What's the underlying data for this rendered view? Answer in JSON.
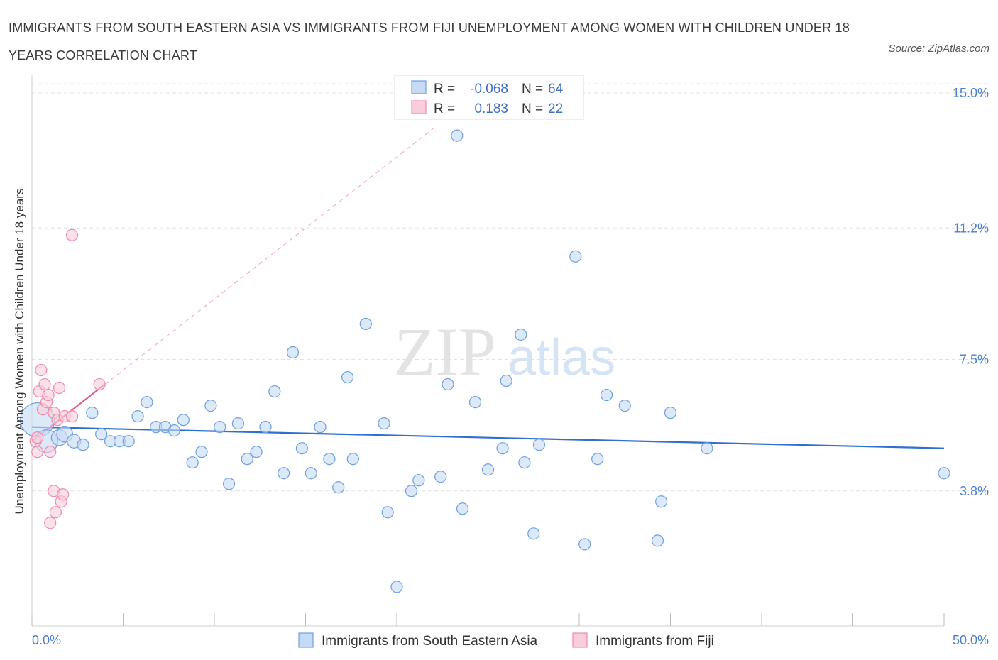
{
  "title": "IMMIGRANTS FROM SOUTH EASTERN ASIA VS IMMIGRANTS FROM FIJI UNEMPLOYMENT AMONG WOMEN WITH CHILDREN UNDER 18 YEARS CORRELATION CHART",
  "source": "Source: ZipAtlas.com",
  "watermark": {
    "zip": "ZIP",
    "atlas": "atlas"
  },
  "legend": {
    "r_label": "R =",
    "n_label": "N =",
    "rows": [
      {
        "r": "-0.068",
        "n": "64"
      },
      {
        "r": "0.183",
        "n": "22"
      }
    ]
  },
  "chart_data": {
    "type": "scatter",
    "ylabel": "Unemployment Among Women with Children Under 18 years",
    "xlim": [
      0,
      50
    ],
    "ylim": [
      0,
      15.5
    ],
    "x_tick_labels": [
      "0.0%",
      "50.0%"
    ],
    "y_ticks": [
      {
        "value": 3.8,
        "label": "3.8%"
      },
      {
        "value": 7.5,
        "label": "7.5%"
      },
      {
        "value": 11.2,
        "label": "11.2%"
      },
      {
        "value": 15.0,
        "label": "15.0%"
      }
    ],
    "grid": "horizontal dashed",
    "series": [
      {
        "name": "Immigrants from South Eastern Asia",
        "color": "#6f9fe0",
        "fill": "#c5daf5",
        "trend": {
          "x": [
            0,
            50
          ],
          "y": [
            5.6,
            5.0
          ],
          "style": "solid"
        },
        "points": [
          [
            0.3,
            5.8
          ],
          [
            0.8,
            5.2
          ],
          [
            1.5,
            5.3
          ],
          [
            1.8,
            5.4
          ],
          [
            2.3,
            5.2
          ],
          [
            2.8,
            5.1
          ],
          [
            3.3,
            6.0
          ],
          [
            3.8,
            5.4
          ],
          [
            4.3,
            5.2
          ],
          [
            4.8,
            5.2
          ],
          [
            5.3,
            5.2
          ],
          [
            5.8,
            5.9
          ],
          [
            6.3,
            6.3
          ],
          [
            6.8,
            5.6
          ],
          [
            7.3,
            5.6
          ],
          [
            7.8,
            5.5
          ],
          [
            8.3,
            5.8
          ],
          [
            8.8,
            4.6
          ],
          [
            9.3,
            4.9
          ],
          [
            9.8,
            6.2
          ],
          [
            10.3,
            5.6
          ],
          [
            10.8,
            4.0
          ],
          [
            11.3,
            5.7
          ],
          [
            11.8,
            4.7
          ],
          [
            12.3,
            4.9
          ],
          [
            12.8,
            5.6
          ],
          [
            13.3,
            6.6
          ],
          [
            13.8,
            4.3
          ],
          [
            14.3,
            7.7
          ],
          [
            14.8,
            5.0
          ],
          [
            15.3,
            4.3
          ],
          [
            15.8,
            5.6
          ],
          [
            16.3,
            4.7
          ],
          [
            16.8,
            3.9
          ],
          [
            17.3,
            7.0
          ],
          [
            17.6,
            4.7
          ],
          [
            18.3,
            8.5
          ],
          [
            19.3,
            5.7
          ],
          [
            19.5,
            3.2
          ],
          [
            20.0,
            1.1
          ],
          [
            20.8,
            3.8
          ],
          [
            21.2,
            4.1
          ],
          [
            22.4,
            4.2
          ],
          [
            22.8,
            6.8
          ],
          [
            23.3,
            13.8
          ],
          [
            23.6,
            3.3
          ],
          [
            24.3,
            6.3
          ],
          [
            25.0,
            4.4
          ],
          [
            25.8,
            5.0
          ],
          [
            26.0,
            6.9
          ],
          [
            26.8,
            8.2
          ],
          [
            27.0,
            4.6
          ],
          [
            27.5,
            2.6
          ],
          [
            27.8,
            5.1
          ],
          [
            29.8,
            10.4
          ],
          [
            30.3,
            2.3
          ],
          [
            31.0,
            4.7
          ],
          [
            31.5,
            6.5
          ],
          [
            32.5,
            6.2
          ],
          [
            34.3,
            2.4
          ],
          [
            34.5,
            3.5
          ],
          [
            35.0,
            6.0
          ],
          [
            37.0,
            5.0
          ],
          [
            50.0,
            4.3
          ]
        ],
        "sizes": [
          30,
          20,
          14,
          14,
          12,
          10,
          10,
          10,
          10,
          10,
          10,
          10,
          10,
          10,
          10,
          10,
          10,
          10,
          10,
          10,
          10,
          10,
          10,
          10,
          10,
          10,
          10,
          10,
          10,
          10,
          10,
          10,
          10,
          10,
          10,
          10,
          10,
          10,
          10,
          10,
          10,
          10,
          10,
          10,
          10,
          10,
          10,
          10,
          10,
          10,
          10,
          10,
          10,
          10,
          10,
          10,
          10,
          10,
          10,
          10,
          10,
          10,
          10,
          10
        ]
      },
      {
        "name": "Immigrants from Fiji",
        "color": "#f08aaa",
        "fill": "#f9cddb",
        "trend": {
          "x": [
            0,
            4.0
          ],
          "y": [
            5.2,
            6.8
          ],
          "style": "solid",
          "extended_to": [
            22,
            14.0
          ]
        },
        "points": [
          [
            0.2,
            5.2
          ],
          [
            0.3,
            4.9
          ],
          [
            0.4,
            6.6
          ],
          [
            0.5,
            7.2
          ],
          [
            0.6,
            6.1
          ],
          [
            0.7,
            6.8
          ],
          [
            0.8,
            6.3
          ],
          [
            0.9,
            6.5
          ],
          [
            1.0,
            4.9
          ],
          [
            1.0,
            2.9
          ],
          [
            1.2,
            6.0
          ],
          [
            1.2,
            3.8
          ],
          [
            1.3,
            3.2
          ],
          [
            1.4,
            5.8
          ],
          [
            1.5,
            6.7
          ],
          [
            1.6,
            3.5
          ],
          [
            1.7,
            3.7
          ],
          [
            1.8,
            5.9
          ],
          [
            2.2,
            5.9
          ],
          [
            2.2,
            11.0
          ],
          [
            3.7,
            6.8
          ],
          [
            0.3,
            5.3
          ]
        ],
        "sizes": [
          10,
          10,
          10,
          10,
          10,
          10,
          10,
          10,
          10,
          10,
          10,
          10,
          10,
          10,
          10,
          10,
          10,
          10,
          10,
          10,
          10,
          10
        ]
      }
    ]
  }
}
